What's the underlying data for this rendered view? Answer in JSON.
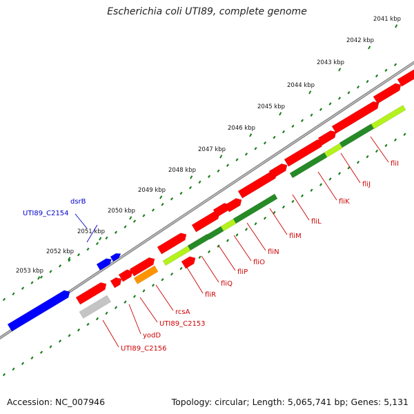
{
  "title": "Escherichia coli UTI89, complete genome",
  "footer": {
    "accession": "Accession: NC_007946",
    "topology": "Topology: circular; Length: 5,065,741 bp; Genes: 5,131"
  },
  "colors": {
    "backbone": "#8a8a8a",
    "ticks": "#1b7d1b",
    "red": "#ff0000",
    "blue": "#0000ff",
    "darkgreen": "#268a26",
    "lightgreen": "#b4f21e",
    "orange": "#ff9400",
    "grey": "#c4c4c4",
    "label_red": "#cc0000",
    "label_blue": "#0000cc"
  },
  "scale_labels": [
    "2041 kbp",
    "2042 kbp",
    "2043 kbp",
    "2044 kbp",
    "2045 kbp",
    "2046 kbp",
    "2047 kbp",
    "2048 kbp",
    "2049 kbp",
    "2050 kbp",
    "2051 kbp",
    "2052 kbp",
    "2053 kbp"
  ],
  "gene_labels": [
    {
      "text": "dsrB",
      "color": "blue"
    },
    {
      "text": "UTI89_C2154",
      "color": "blue"
    },
    {
      "text": "fliI",
      "color": "red"
    },
    {
      "text": "fliJ",
      "color": "red"
    },
    {
      "text": "fliK",
      "color": "red"
    },
    {
      "text": "fliL",
      "color": "red"
    },
    {
      "text": "fliM",
      "color": "red"
    },
    {
      "text": "fliN",
      "color": "red"
    },
    {
      "text": "fliO",
      "color": "red"
    },
    {
      "text": "fliP",
      "color": "red"
    },
    {
      "text": "fliQ",
      "color": "red"
    },
    {
      "text": "fliR",
      "color": "red"
    },
    {
      "text": "rcsA",
      "color": "red"
    },
    {
      "text": "UTI89_C2153",
      "color": "red"
    },
    {
      "text": "yodD",
      "color": "red"
    },
    {
      "text": "UTI89_C2156",
      "color": "red"
    }
  ]
}
